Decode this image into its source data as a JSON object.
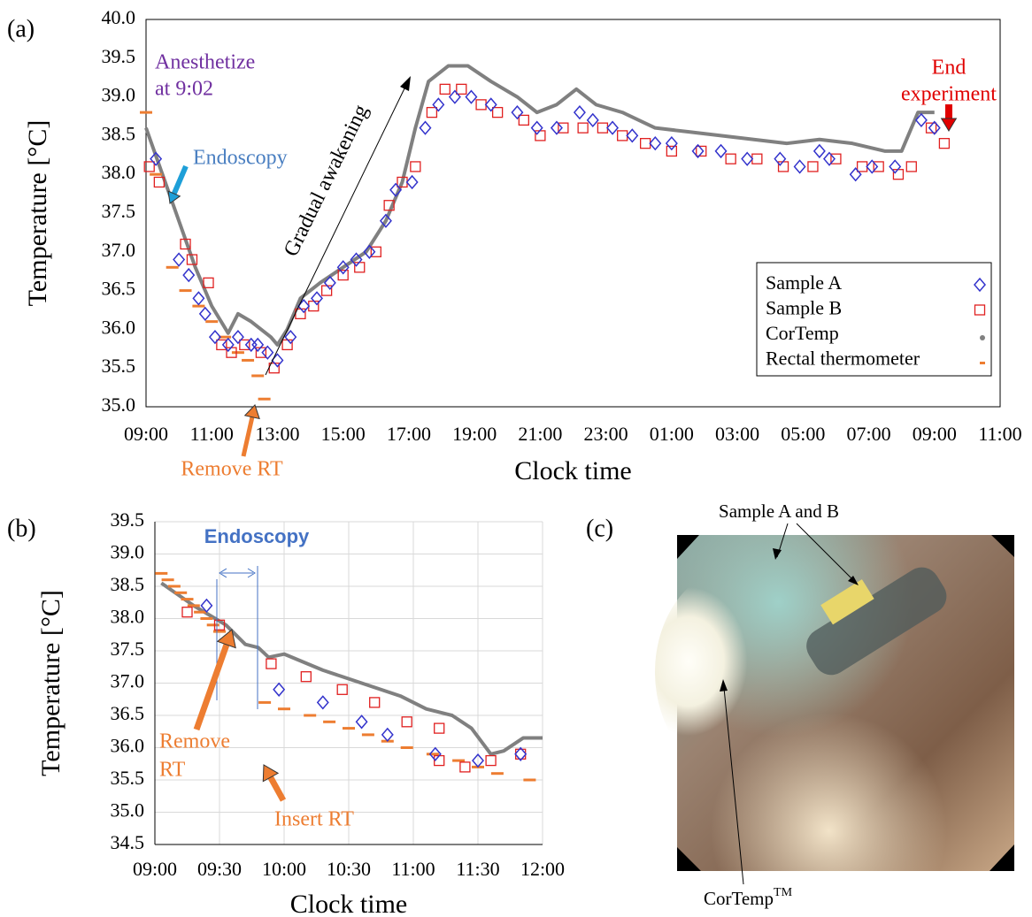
{
  "chart_data": [
    {
      "type": "scatter",
      "panel_label": "(a)",
      "x_label": "Clock time",
      "y_label": "Temperature [°C]",
      "xlim": [
        9,
        35
      ],
      "ylim": [
        35,
        40
      ],
      "xticks": [
        {
          "value": 9,
          "label": "09:00"
        },
        {
          "value": 11,
          "label": "11:00"
        },
        {
          "value": 13,
          "label": "13:00"
        },
        {
          "value": 15,
          "label": "15:00"
        },
        {
          "value": 17,
          "label": "17:00"
        },
        {
          "value": 19,
          "label": "19:00"
        },
        {
          "value": 21,
          "label": "21:00"
        },
        {
          "value": 23,
          "label": "23:00"
        },
        {
          "value": 25,
          "label": "01:00"
        },
        {
          "value": 27,
          "label": "03:00"
        },
        {
          "value": 29,
          "label": "05:00"
        },
        {
          "value": 31,
          "label": "07:00"
        },
        {
          "value": 33,
          "label": "09:00"
        },
        {
          "value": 35,
          "label": "11:00"
        }
      ],
      "yticks": [
        {
          "value": 35,
          "label": "35.0"
        },
        35.5,
        {
          "value": 36,
          "label": "36.0"
        },
        36.5,
        {
          "value": 37,
          "label": "37.0"
        },
        37.5,
        {
          "value": 38,
          "label": "38.0"
        },
        38.5,
        {
          "value": 39,
          "label": "39.0"
        },
        39.5,
        {
          "value": 40,
          "label": "40.0"
        }
      ],
      "grid": false,
      "legend": "lower right",
      "series": [
        {
          "name": "Sample A",
          "color": "#3333cc",
          "marker": "diamond",
          "x": [
            9.3,
            10.0,
            10.3,
            10.6,
            10.8,
            11.1,
            11.5,
            11.8,
            12.2,
            12.4,
            12.7,
            13.0,
            13.4,
            13.8,
            14.2,
            14.6,
            15.0,
            15.4,
            15.8,
            16.3,
            16.6,
            17.1,
            17.5,
            17.9,
            18.4,
            18.9,
            19.5,
            20.3,
            20.9,
            21.5,
            22.2,
            22.6,
            23.2,
            23.8,
            24.5,
            25.0,
            25.8,
            26.5,
            27.3,
            28.3,
            28.9,
            29.5,
            29.8,
            30.6,
            31.1,
            31.8,
            32.6,
            33.0
          ],
          "values": [
            38.2,
            36.9,
            36.7,
            36.4,
            36.2,
            35.9,
            35.8,
            35.9,
            35.8,
            35.8,
            35.7,
            35.6,
            35.9,
            36.3,
            36.4,
            36.6,
            36.8,
            36.9,
            37.0,
            37.4,
            37.8,
            37.9,
            38.6,
            38.9,
            39.0,
            39.0,
            38.9,
            38.8,
            38.6,
            38.6,
            38.8,
            38.7,
            38.6,
            38.5,
            38.4,
            38.4,
            38.3,
            38.3,
            38.2,
            38.2,
            38.1,
            38.3,
            38.2,
            38.0,
            38.1,
            38.1,
            38.7,
            38.6
          ]
        },
        {
          "name": "Sample B",
          "color": "#e02020",
          "marker": "square",
          "x": [
            9.1,
            9.4,
            10.2,
            10.4,
            10.9,
            11.3,
            11.6,
            12.0,
            12.5,
            12.9,
            13.3,
            13.7,
            14.1,
            14.5,
            15.0,
            15.5,
            16.0,
            16.4,
            16.8,
            17.2,
            17.7,
            18.1,
            18.6,
            19.2,
            19.7,
            20.5,
            21.0,
            21.7,
            22.3,
            22.9,
            23.5,
            24.2,
            25.0,
            25.9,
            26.8,
            27.6,
            28.4,
            29.3,
            30.0,
            30.8,
            31.3,
            31.9,
            32.3,
            32.9,
            33.3
          ],
          "values": [
            38.1,
            37.9,
            37.1,
            36.9,
            36.6,
            35.8,
            35.7,
            35.8,
            35.7,
            35.5,
            35.8,
            36.2,
            36.3,
            36.5,
            36.7,
            36.8,
            37.0,
            37.6,
            37.9,
            38.1,
            38.8,
            39.1,
            39.1,
            38.9,
            38.8,
            38.7,
            38.5,
            38.6,
            38.6,
            38.6,
            38.5,
            38.4,
            38.3,
            38.3,
            38.2,
            38.2,
            38.1,
            38.1,
            38.2,
            38.1,
            38.1,
            38.0,
            38.1,
            38.6,
            38.4
          ]
        },
        {
          "name": "CorTemp",
          "color": "#808080",
          "marker": "dot-line",
          "x": [
            9.0,
            9.5,
            10.0,
            10.5,
            11.0,
            11.5,
            11.8,
            12.2,
            12.8,
            13.0,
            13.3,
            13.7,
            14.3,
            15.0,
            15.7,
            16.3,
            16.8,
            17.2,
            17.6,
            18.2,
            18.8,
            19.5,
            20.3,
            20.9,
            21.5,
            22.1,
            22.7,
            23.5,
            24.5,
            25.5,
            26.5,
            27.5,
            28.5,
            29.5,
            30.5,
            31.5,
            32.0,
            32.5,
            33.0
          ],
          "values": [
            38.6,
            38.0,
            37.4,
            36.8,
            36.3,
            35.95,
            36.2,
            36.1,
            35.9,
            35.8,
            36.0,
            36.4,
            36.6,
            36.8,
            37.0,
            37.4,
            37.9,
            38.6,
            39.2,
            39.4,
            39.4,
            39.2,
            39.0,
            38.8,
            38.9,
            39.1,
            38.9,
            38.8,
            38.6,
            38.55,
            38.5,
            38.45,
            38.4,
            38.45,
            38.4,
            38.3,
            38.3,
            38.8,
            38.8
          ]
        },
        {
          "name": "Rectal thermometer",
          "color": "#ed7d31",
          "marker": "dash",
          "x": [
            9.0,
            9.3,
            9.8,
            10.2,
            10.6,
            11.0,
            11.4,
            11.8,
            12.1,
            12.4,
            12.6
          ],
          "values": [
            38.8,
            38.0,
            36.8,
            36.5,
            36.3,
            36.1,
            35.9,
            35.7,
            35.6,
            35.4,
            35.1
          ]
        }
      ],
      "annotations": [
        {
          "lines": [
            "Anesthetize",
            "at 9:02"
          ],
          "color": "#7030a0"
        },
        {
          "lines": [
            "Endoscopy"
          ],
          "color": "#4a7fc1"
        },
        {
          "lines": [
            "Gradual awakening"
          ],
          "color": "#000000"
        },
        {
          "lines": [
            "End",
            "experiment"
          ],
          "color": "#e00000"
        },
        {
          "lines": [
            "Remove RT"
          ],
          "color": "#ed7d31"
        }
      ]
    },
    {
      "type": "scatter",
      "panel_label": "(b)",
      "x_label": "Clock time",
      "y_label": "Temperature [°C]",
      "xlim": [
        9,
        12
      ],
      "ylim": [
        34.5,
        39.5
      ],
      "xticks": [
        {
          "value": 9,
          "label": "09:00"
        },
        {
          "value": 9.5,
          "label": "09:30"
        },
        {
          "value": 10,
          "label": "10:00"
        },
        {
          "value": 10.5,
          "label": "10:30"
        },
        {
          "value": 11,
          "label": "11:00"
        },
        {
          "value": 11.5,
          "label": "11:30"
        },
        {
          "value": 12,
          "label": "12:00"
        }
      ],
      "yticks": [
        34.5,
        {
          "value": 35,
          "label": "35.0"
        },
        35.5,
        {
          "value": 36,
          "label": "36.0"
        },
        36.5,
        {
          "value": 37,
          "label": "37.0"
        },
        37.5,
        {
          "value": 38,
          "label": "38.0"
        },
        38.5,
        {
          "value": 39,
          "label": "39.0"
        },
        39.5
      ],
      "grid": true,
      "series": [
        {
          "name": "Sample A",
          "color": "#3333cc",
          "marker": "diamond",
          "x": [
            9.4,
            9.96,
            10.3,
            10.6,
            10.8,
            11.17,
            11.5,
            11.83
          ],
          "values": [
            38.2,
            36.9,
            36.7,
            36.4,
            36.2,
            35.9,
            35.8,
            35.9
          ]
        },
        {
          "name": "Sample B",
          "color": "#e02020",
          "marker": "square",
          "x": [
            9.25,
            9.5,
            9.9,
            10.17,
            10.45,
            10.7,
            10.95,
            11.2,
            11.2,
            11.4,
            11.6,
            11.83
          ],
          "values": [
            38.1,
            37.9,
            37.3,
            37.1,
            36.9,
            36.7,
            36.4,
            36.3,
            35.8,
            35.7,
            35.8,
            35.9
          ]
        },
        {
          "name": "CorTemp",
          "color": "#808080",
          "marker": "dot-line",
          "x": [
            9.05,
            9.3,
            9.55,
            9.7,
            9.8,
            9.88,
            10.0,
            10.3,
            10.6,
            10.9,
            11.1,
            11.3,
            11.45,
            11.6,
            11.7,
            11.85,
            12.0
          ],
          "values": [
            38.55,
            38.2,
            37.9,
            37.6,
            37.55,
            37.4,
            37.45,
            37.2,
            37.0,
            36.8,
            36.6,
            36.5,
            36.3,
            35.9,
            35.95,
            36.15,
            36.15
          ]
        },
        {
          "name": "Rectal thermometer",
          "color": "#ed7d31",
          "marker": "dash",
          "x": [
            9.05,
            9.1,
            9.15,
            9.2,
            9.25,
            9.3,
            9.35,
            9.4,
            9.45,
            9.5,
            9.85,
            10.0,
            10.2,
            10.35,
            10.5,
            10.65,
            10.8,
            10.95,
            11.15,
            11.35,
            11.5,
            11.65,
            11.9
          ],
          "values": [
            38.7,
            38.6,
            38.5,
            38.4,
            38.3,
            38.2,
            38.1,
            38.0,
            37.9,
            37.8,
            36.7,
            36.6,
            36.5,
            36.4,
            36.3,
            36.2,
            36.1,
            36.0,
            35.9,
            35.8,
            35.7,
            35.6,
            35.5
          ]
        }
      ],
      "annotations": [
        {
          "lines": [
            "Endoscopy"
          ],
          "color": "#4472c4"
        },
        {
          "lines": [
            "Remove",
            "RT"
          ],
          "color": "#ed7d31"
        },
        {
          "lines": [
            "Insert RT"
          ],
          "color": "#ed7d31"
        }
      ]
    }
  ],
  "photo": {
    "panel_label": "(c)",
    "labels": [
      {
        "text": "Sample A and B"
      },
      {
        "text": "CorTemp",
        "superscript": "TM"
      }
    ]
  }
}
